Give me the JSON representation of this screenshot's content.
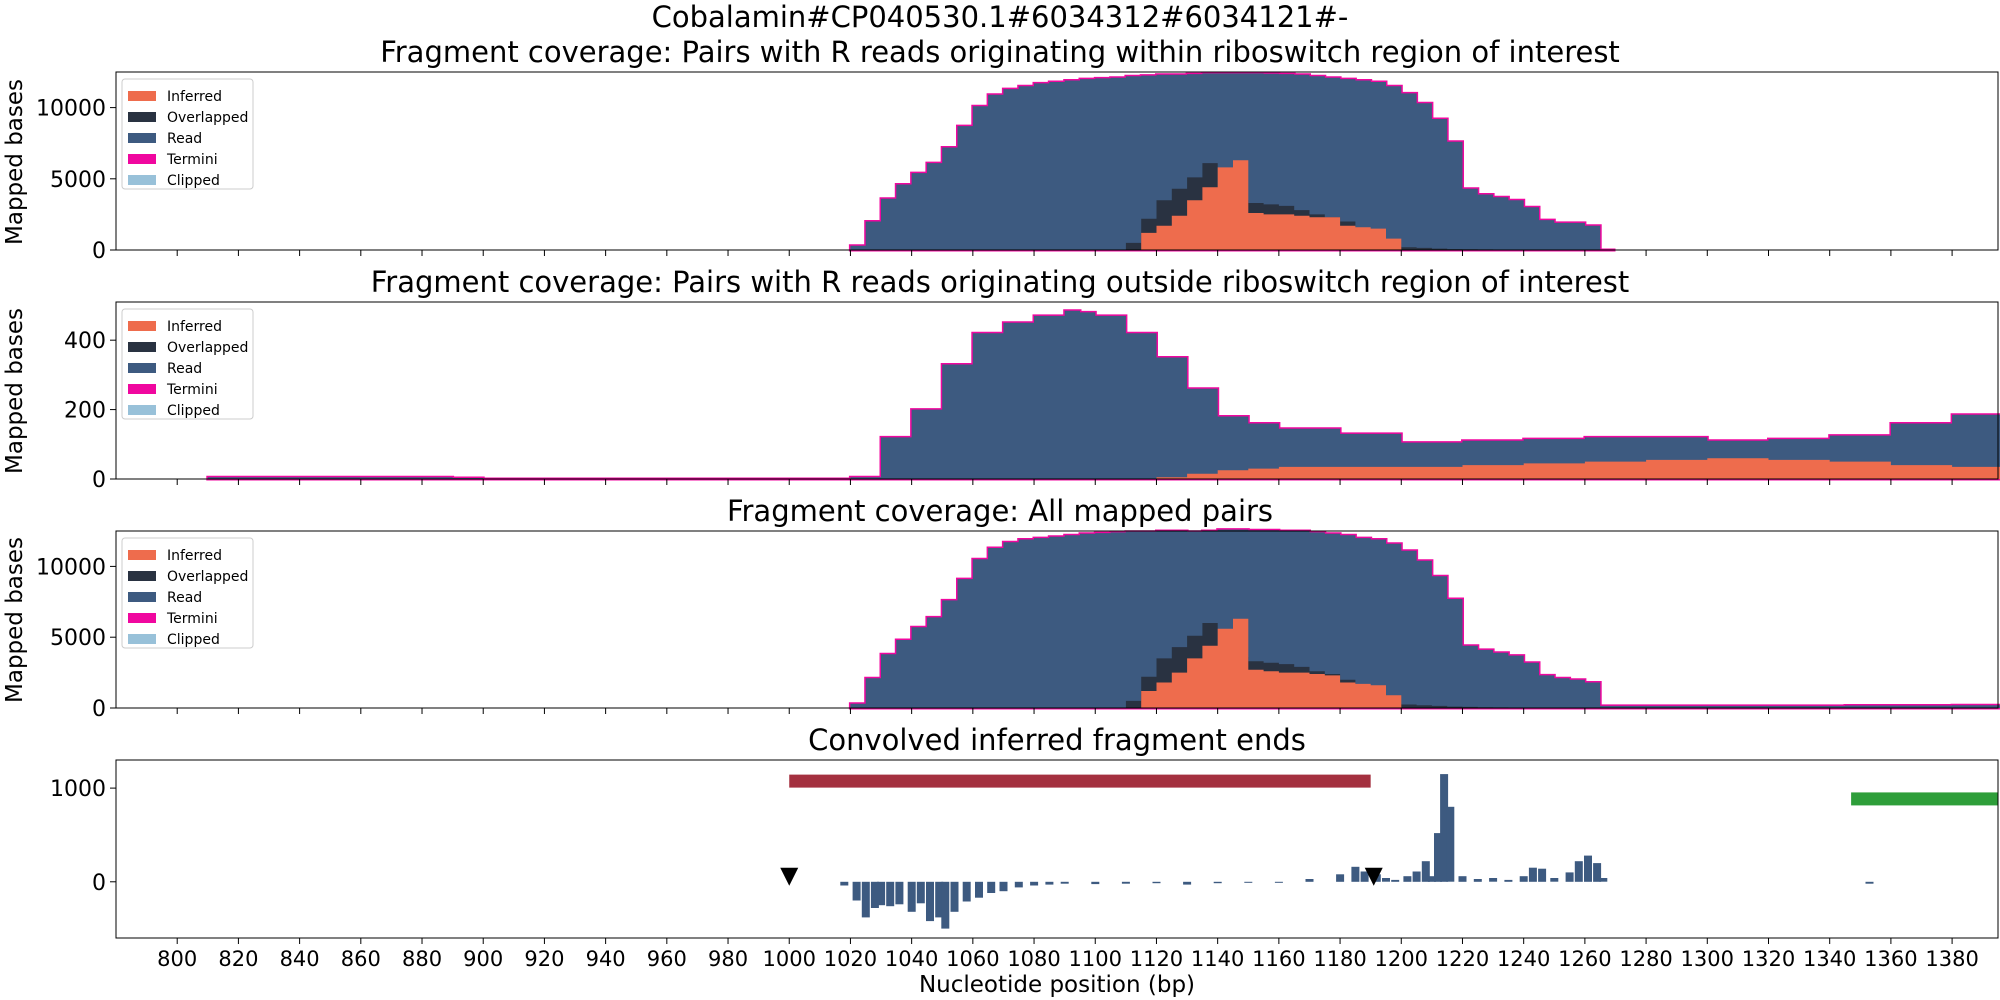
{
  "figure": {
    "suptitle": "Cobalamin#CP040530.1#6034312#6034121#-"
  },
  "colors": {
    "inferred": "#EE6C4D",
    "overlapped": "#293241",
    "read": "#3D5A80",
    "termini": "#F0079F",
    "clipped": "#98C1D9",
    "red_bar": "#A4303F",
    "green_bar": "#2E9E3A"
  },
  "chart_data": [
    {
      "type": "area",
      "title": "Fragment coverage: Pairs with R reads originating within riboswitch region of interest",
      "ylabel": "Mapped bases",
      "xlim": [
        780,
        1395
      ],
      "ylim": [
        0,
        12500
      ],
      "yticks": [
        0,
        5000,
        10000
      ],
      "legend": {
        "position": "top-left",
        "entries": [
          "Inferred",
          "Overlapped",
          "Read",
          "Termini",
          "Clipped"
        ]
      },
      "x": [
        1020,
        1025,
        1030,
        1035,
        1040,
        1045,
        1050,
        1055,
        1060,
        1065,
        1070,
        1075,
        1080,
        1085,
        1090,
        1095,
        1100,
        1105,
        1110,
        1115,
        1120,
        1125,
        1130,
        1135,
        1140,
        1145,
        1150,
        1155,
        1160,
        1165,
        1170,
        1175,
        1180,
        1185,
        1190,
        1195,
        1200,
        1205,
        1210,
        1215,
        1220,
        1225,
        1230,
        1235,
        1240,
        1245,
        1250,
        1255,
        1260,
        1265
      ],
      "series": [
        {
          "name": "Read",
          "values": [
            300,
            2000,
            3600,
            4600,
            5400,
            6100,
            7200,
            8700,
            10100,
            10900,
            11300,
            11500,
            11700,
            11800,
            11900,
            12000,
            12050,
            12100,
            12200,
            12250,
            12300,
            12300,
            12350,
            12400,
            12400,
            12400,
            12400,
            12380,
            12350,
            12300,
            12200,
            12100,
            12000,
            11900,
            11800,
            11500,
            11000,
            10300,
            9200,
            7600,
            4300,
            3900,
            3700,
            3500,
            3000,
            2100,
            1900,
            1900,
            1700,
            0
          ]
        },
        {
          "name": "Overlapped",
          "values": [
            0,
            0,
            0,
            0,
            0,
            0,
            0,
            0,
            0,
            0,
            0,
            0,
            0,
            0,
            0,
            0,
            0,
            0,
            500,
            2200,
            3500,
            4300,
            5100,
            6100,
            3800,
            3500,
            3300,
            3200,
            3100,
            2800,
            2500,
            2300,
            2000,
            400,
            300,
            250,
            200,
            150,
            100,
            60,
            50,
            40,
            30,
            20,
            10,
            0,
            0,
            0,
            0,
            0
          ]
        },
        {
          "name": "Inferred",
          "values": [
            0,
            0,
            0,
            0,
            0,
            0,
            0,
            0,
            0,
            0,
            0,
            0,
            0,
            0,
            0,
            0,
            0,
            0,
            0,
            1200,
            1700,
            2400,
            3500,
            4400,
            5800,
            6300,
            2600,
            2500,
            2500,
            2400,
            2300,
            2300,
            1700,
            1600,
            1500,
            800,
            0,
            0,
            0,
            0,
            0,
            0,
            0,
            0,
            0,
            0,
            0,
            0,
            0,
            0
          ]
        }
      ]
    },
    {
      "type": "area",
      "title": "Fragment coverage: Pairs with R reads originating outside riboswitch region of interest",
      "ylabel": "Mapped bases",
      "xlim": [
        780,
        1395
      ],
      "ylim": [
        0,
        510
      ],
      "yticks": [
        0,
        200,
        400
      ],
      "legend": {
        "position": "top-left",
        "entries": [
          "Inferred",
          "Overlapped",
          "Read",
          "Termini",
          "Clipped"
        ]
      },
      "x": [
        810,
        830,
        850,
        870,
        890,
        900,
        1015,
        1020,
        1030,
        1040,
        1050,
        1060,
        1070,
        1080,
        1090,
        1095,
        1100,
        1110,
        1120,
        1130,
        1140,
        1150,
        1160,
        1180,
        1200,
        1220,
        1240,
        1260,
        1280,
        1300,
        1320,
        1340,
        1360,
        1380
      ],
      "series": [
        {
          "name": "Read",
          "values": [
            5,
            5,
            5,
            5,
            3,
            0,
            0,
            5,
            120,
            200,
            330,
            420,
            450,
            470,
            485,
            480,
            470,
            420,
            350,
            260,
            180,
            160,
            145,
            130,
            105,
            110,
            115,
            120,
            120,
            110,
            115,
            125,
            160,
            185
          ]
        },
        {
          "name": "Inferred",
          "values": [
            0,
            0,
            0,
            0,
            0,
            0,
            0,
            0,
            0,
            0,
            0,
            0,
            0,
            0,
            0,
            0,
            0,
            0,
            5,
            15,
            25,
            30,
            35,
            35,
            35,
            40,
            45,
            50,
            55,
            60,
            55,
            50,
            40,
            35
          ]
        }
      ]
    },
    {
      "type": "area",
      "title": "Fragment coverage: All mapped pairs",
      "ylabel": "Mapped bases",
      "xlim": [
        780,
        1395
      ],
      "ylim": [
        0,
        12500
      ],
      "yticks": [
        0,
        5000,
        10000
      ],
      "legend": {
        "position": "top-left",
        "entries": [
          "Inferred",
          "Overlapped",
          "Read",
          "Termini",
          "Clipped"
        ]
      },
      "x": [
        1020,
        1025,
        1030,
        1035,
        1040,
        1045,
        1050,
        1055,
        1060,
        1065,
        1070,
        1075,
        1080,
        1085,
        1090,
        1095,
        1100,
        1105,
        1110,
        1115,
        1120,
        1125,
        1130,
        1135,
        1140,
        1145,
        1150,
        1155,
        1160,
        1165,
        1170,
        1175,
        1180,
        1185,
        1190,
        1195,
        1200,
        1205,
        1210,
        1215,
        1220,
        1225,
        1230,
        1235,
        1240,
        1245,
        1250,
        1255,
        1260,
        1265,
        1300,
        1345,
        1380
      ],
      "series": [
        {
          "name": "Read",
          "values": [
            300,
            2100,
            3800,
            4800,
            5700,
            6400,
            7600,
            9100,
            10500,
            11300,
            11700,
            11900,
            12000,
            12100,
            12200,
            12300,
            12350,
            12400,
            12450,
            12450,
            12500,
            12500,
            12450,
            12500,
            12600,
            12600,
            12550,
            12550,
            12500,
            12500,
            12400,
            12300,
            12200,
            12000,
            11900,
            11600,
            11100,
            10400,
            9300,
            7700,
            4400,
            4100,
            3900,
            3700,
            3200,
            2300,
            2100,
            2000,
            1800,
            150,
            150,
            180,
            200
          ]
        },
        {
          "name": "Overlapped",
          "values": [
            0,
            0,
            0,
            0,
            0,
            0,
            0,
            0,
            0,
            0,
            0,
            0,
            0,
            0,
            0,
            0,
            0,
            0,
            500,
            2200,
            3500,
            4300,
            5100,
            6000,
            4000,
            3600,
            3300,
            3200,
            3100,
            2900,
            2600,
            2400,
            2000,
            450,
            350,
            300,
            250,
            200,
            150,
            100,
            80,
            60,
            40,
            30,
            20,
            0,
            0,
            0,
            0,
            0,
            0,
            0,
            0
          ]
        },
        {
          "name": "Inferred",
          "values": [
            0,
            0,
            0,
            0,
            0,
            0,
            0,
            0,
            0,
            0,
            0,
            0,
            0,
            0,
            0,
            0,
            0,
            0,
            0,
            1200,
            1800,
            2500,
            3500,
            4400,
            5600,
            6300,
            2700,
            2600,
            2500,
            2500,
            2400,
            2300,
            1800,
            1700,
            1600,
            900,
            0,
            0,
            0,
            0,
            0,
            0,
            0,
            0,
            0,
            0,
            0,
            0,
            0,
            0,
            0,
            0,
            0
          ]
        }
      ]
    },
    {
      "type": "bar",
      "title": "Convolved inferred fragment ends",
      "ylabel": "",
      "xlabel": "Nucleotide position (bp)",
      "xlim": [
        780,
        1395
      ],
      "ylim": [
        -600,
        1300
      ],
      "yticks": [
        0,
        1000
      ],
      "xticks": [
        800,
        820,
        840,
        860,
        880,
        900,
        920,
        940,
        960,
        980,
        1000,
        1020,
        1040,
        1060,
        1080,
        1100,
        1120,
        1140,
        1160,
        1180,
        1200,
        1220,
        1240,
        1260,
        1280,
        1300,
        1320,
        1340,
        1360,
        1380
      ],
      "x": [
        1018,
        1022,
        1025,
        1028,
        1030,
        1033,
        1036,
        1040,
        1043,
        1046,
        1049,
        1051,
        1054,
        1058,
        1062,
        1066,
        1070,
        1075,
        1080,
        1085,
        1090,
        1100,
        1110,
        1120,
        1130,
        1140,
        1150,
        1160,
        1170,
        1180,
        1185,
        1188,
        1192,
        1195,
        1198,
        1202,
        1205,
        1208,
        1210,
        1212,
        1214,
        1216,
        1220,
        1225,
        1230,
        1235,
        1240,
        1243,
        1246,
        1250,
        1255,
        1258,
        1261,
        1264,
        1266,
        1353
      ],
      "values": [
        -40,
        -200,
        -380,
        -280,
        -250,
        -260,
        -240,
        -320,
        -230,
        -420,
        -380,
        -500,
        -320,
        -210,
        -170,
        -120,
        -100,
        -60,
        -40,
        -30,
        -20,
        -25,
        -20,
        -15,
        -30,
        -15,
        -10,
        -8,
        30,
        80,
        160,
        110,
        80,
        40,
        20,
        60,
        110,
        220,
        60,
        520,
        1150,
        800,
        60,
        30,
        40,
        20,
        60,
        150,
        140,
        40,
        100,
        220,
        280,
        200,
        40,
        -20
      ],
      "annotations": {
        "markers": [
          1000,
          1191
        ],
        "red_bar": [
          1000,
          1190
        ],
        "green_bar": [
          1347,
          1395
        ],
        "red_bar_level": 1080,
        "green_bar_level": 890
      }
    }
  ]
}
